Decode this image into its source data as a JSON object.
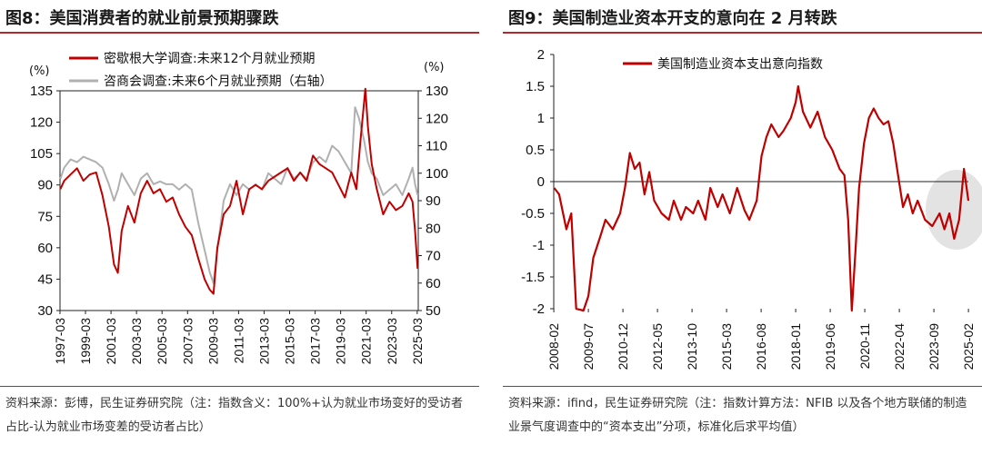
{
  "left_panel": {
    "title": "图8：美国消费者的就业前景预期骤跌",
    "source": "资料来源：彭博，民生证券研究院（注：指数含义：100%+认为就业市场变好的受访者占比-认为就业市场变差的受访者占比）"
  },
  "right_panel": {
    "title": "图9：美国制造业资本开支的意向在 2 月转跌",
    "source": "资料来源：ifind，民生证券研究院（注：指数计算方法：NFIB 以及各个地方联储的制造业景气度调查中的“资本支出”分项，标准化后求平均值）"
  },
  "colors": {
    "red": "#c00000",
    "gray": "#b0b0b0",
    "rule": "#b3282d",
    "ellipse": "#d9d9d9"
  },
  "chart_data": [
    {
      "type": "line",
      "title": "图8：美国消费者的就业前景预期骤跌",
      "y_left_unit": "(%)",
      "y_right_unit": "(%)",
      "y_left_range": [
        30,
        135
      ],
      "y_left_ticks": [
        "30",
        "45",
        "60",
        "75",
        "90",
        "105",
        "120",
        "135"
      ],
      "y_right_range": [
        50,
        130
      ],
      "y_right_ticks": [
        "50",
        "60",
        "70",
        "80",
        "90",
        "100",
        "110",
        "120",
        "130"
      ],
      "x_range": [
        1997.17,
        2025.25
      ],
      "x_ticks": [
        "1997-03",
        "1999-03",
        "2001-03",
        "2003-03",
        "2005-03",
        "2007-03",
        "2009-03",
        "2011-03",
        "2013-03",
        "2015-03",
        "2017-03",
        "2019-03",
        "2021-03",
        "2023-03",
        "2025-03"
      ],
      "series": [
        {
          "name": "密歇根大学调查:未来12个月就业预期",
          "axis": "left",
          "color": "#c00000",
          "points": [
            [
              1997.2,
              88
            ],
            [
              1997.5,
              92
            ],
            [
              1998.0,
              95
            ],
            [
              1998.5,
              98
            ],
            [
              1999.0,
              92
            ],
            [
              1999.5,
              95
            ],
            [
              2000.0,
              96
            ],
            [
              2000.5,
              85
            ],
            [
              2001.0,
              70
            ],
            [
              2001.4,
              52
            ],
            [
              2001.7,
              48
            ],
            [
              2002.0,
              68
            ],
            [
              2002.5,
              80
            ],
            [
              2003.0,
              72
            ],
            [
              2003.5,
              86
            ],
            [
              2004.0,
              92
            ],
            [
              2004.5,
              86
            ],
            [
              2005.0,
              88
            ],
            [
              2005.5,
              82
            ],
            [
              2006.0,
              84
            ],
            [
              2006.5,
              76
            ],
            [
              2007.0,
              70
            ],
            [
              2007.5,
              66
            ],
            [
              2008.0,
              55
            ],
            [
              2008.5,
              45
            ],
            [
              2008.9,
              40
            ],
            [
              2009.2,
              38
            ],
            [
              2009.5,
              60
            ],
            [
              2010.0,
              76
            ],
            [
              2010.5,
              80
            ],
            [
              2011.0,
              92
            ],
            [
              2011.5,
              76
            ],
            [
              2012.0,
              88
            ],
            [
              2012.5,
              90
            ],
            [
              2013.0,
              88
            ],
            [
              2013.5,
              92
            ],
            [
              2014.0,
              94
            ],
            [
              2014.5,
              96
            ],
            [
              2015.0,
              98
            ],
            [
              2015.5,
              92
            ],
            [
              2016.0,
              96
            ],
            [
              2016.5,
              92
            ],
            [
              2017.0,
              104
            ],
            [
              2017.5,
              100
            ],
            [
              2018.0,
              98
            ],
            [
              2018.5,
              96
            ],
            [
              2019.0,
              90
            ],
            [
              2019.5,
              84
            ],
            [
              2020.0,
              96
            ],
            [
              2020.4,
              88
            ],
            [
              2020.7,
              110
            ],
            [
              2021.1,
              136
            ],
            [
              2021.3,
              118
            ],
            [
              2021.6,
              100
            ],
            [
              2022.0,
              88
            ],
            [
              2022.5,
              76
            ],
            [
              2023.0,
              82
            ],
            [
              2023.5,
              78
            ],
            [
              2024.0,
              80
            ],
            [
              2024.5,
              86
            ],
            [
              2024.8,
              82
            ],
            [
              2025.0,
              68
            ],
            [
              2025.2,
              50
            ]
          ]
        },
        {
          "name": "咨商会调查:未来6个月就业预期（右轴）",
          "axis": "right",
          "color": "#b0b0b0",
          "points": [
            [
              1997.2,
              98
            ],
            [
              1997.5,
              102
            ],
            [
              1998.0,
              105
            ],
            [
              1998.5,
              104
            ],
            [
              1999.0,
              106
            ],
            [
              1999.5,
              105
            ],
            [
              2000.0,
              104
            ],
            [
              2000.5,
              102
            ],
            [
              2001.0,
              96
            ],
            [
              2001.4,
              90
            ],
            [
              2001.7,
              94
            ],
            [
              2002.0,
              100
            ],
            [
              2002.5,
              96
            ],
            [
              2003.0,
              92
            ],
            [
              2003.5,
              98
            ],
            [
              2004.0,
              100
            ],
            [
              2004.5,
              96
            ],
            [
              2005.0,
              97
            ],
            [
              2005.5,
              96
            ],
            [
              2006.0,
              96
            ],
            [
              2006.5,
              94
            ],
            [
              2007.0,
              96
            ],
            [
              2007.5,
              94
            ],
            [
              2008.0,
              82
            ],
            [
              2008.5,
              72
            ],
            [
              2008.9,
              64
            ],
            [
              2009.2,
              60
            ],
            [
              2009.5,
              72
            ],
            [
              2010.0,
              90
            ],
            [
              2010.5,
              96
            ],
            [
              2011.0,
              92
            ],
            [
              2011.5,
              96
            ],
            [
              2012.0,
              94
            ],
            [
              2012.5,
              96
            ],
            [
              2013.0,
              94
            ],
            [
              2013.5,
              100
            ],
            [
              2014.0,
              98
            ],
            [
              2014.5,
              96
            ],
            [
              2015.0,
              102
            ],
            [
              2015.5,
              98
            ],
            [
              2016.0,
              100
            ],
            [
              2016.5,
              98
            ],
            [
              2017.0,
              104
            ],
            [
              2017.5,
              106
            ],
            [
              2018.0,
              104
            ],
            [
              2018.5,
              110
            ],
            [
              2019.0,
              108
            ],
            [
              2019.5,
              104
            ],
            [
              2020.0,
              100
            ],
            [
              2020.3,
              124
            ],
            [
              2020.6,
              120
            ],
            [
              2021.0,
              112
            ],
            [
              2021.3,
              104
            ],
            [
              2021.6,
              100
            ],
            [
              2022.0,
              98
            ],
            [
              2022.5,
              92
            ],
            [
              2023.0,
              94
            ],
            [
              2023.5,
              96
            ],
            [
              2024.0,
              92
            ],
            [
              2024.5,
              98
            ],
            [
              2024.8,
              102
            ],
            [
              2025.0,
              96
            ],
            [
              2025.2,
              92
            ]
          ]
        }
      ]
    },
    {
      "type": "line",
      "title": "图9：美国制造业资本开支的意向在 2 月转跌",
      "y_range": [
        -2,
        2
      ],
      "y_ticks": [
        "-2",
        "-1.5",
        "-1",
        "-0.5",
        "0",
        "0.5",
        "1",
        "1.5",
        "2"
      ],
      "x_range": [
        2008.08,
        2025.08
      ],
      "x_ticks": [
        "2008-02",
        "2009-07",
        "2010-12",
        "2012-05",
        "2013-10",
        "2015-03",
        "2016-08",
        "2018-01",
        "2019-06",
        "2020-11",
        "2022-04",
        "2023-09",
        "2025-02"
      ],
      "series": [
        {
          "name": "美国制造业资本支出意向指数",
          "color": "#c00000",
          "points": [
            [
              2008.1,
              -0.1
            ],
            [
              2008.3,
              -0.2
            ],
            [
              2008.6,
              -0.75
            ],
            [
              2008.8,
              -0.5
            ],
            [
              2009.0,
              -2.0
            ],
            [
              2009.3,
              -2.1
            ],
            [
              2009.5,
              -1.8
            ],
            [
              2009.7,
              -1.2
            ],
            [
              2010.0,
              -0.85
            ],
            [
              2010.2,
              -0.6
            ],
            [
              2010.5,
              -0.75
            ],
            [
              2010.8,
              -0.5
            ],
            [
              2011.0,
              -0.1
            ],
            [
              2011.2,
              0.45
            ],
            [
              2011.4,
              0.2
            ],
            [
              2011.6,
              0.3
            ],
            [
              2011.8,
              -0.2
            ],
            [
              2012.0,
              0.15
            ],
            [
              2012.2,
              -0.3
            ],
            [
              2012.5,
              -0.5
            ],
            [
              2012.8,
              -0.6
            ],
            [
              2013.0,
              -0.3
            ],
            [
              2013.3,
              -0.6
            ],
            [
              2013.5,
              -0.4
            ],
            [
              2013.8,
              -0.5
            ],
            [
              2014.0,
              -0.3
            ],
            [
              2014.3,
              -0.6
            ],
            [
              2014.5,
              -0.1
            ],
            [
              2014.8,
              -0.4
            ],
            [
              2015.0,
              -0.2
            ],
            [
              2015.3,
              -0.5
            ],
            [
              2015.6,
              -0.1
            ],
            [
              2015.9,
              -0.45
            ],
            [
              2016.1,
              -0.6
            ],
            [
              2016.4,
              -0.3
            ],
            [
              2016.6,
              0.4
            ],
            [
              2016.8,
              0.7
            ],
            [
              2017.0,
              0.9
            ],
            [
              2017.3,
              0.7
            ],
            [
              2017.5,
              0.8
            ],
            [
              2017.8,
              1.0
            ],
            [
              2018.0,
              1.25
            ],
            [
              2018.1,
              1.5
            ],
            [
              2018.3,
              1.1
            ],
            [
              2018.6,
              0.85
            ],
            [
              2018.9,
              1.1
            ],
            [
              2019.2,
              0.7
            ],
            [
              2019.5,
              0.5
            ],
            [
              2019.8,
              0.2
            ],
            [
              2020.0,
              0.1
            ],
            [
              2020.15,
              -0.6
            ],
            [
              2020.3,
              -2.05
            ],
            [
              2020.45,
              -1.1
            ],
            [
              2020.6,
              -0.1
            ],
            [
              2020.8,
              0.6
            ],
            [
              2021.0,
              1.0
            ],
            [
              2021.2,
              1.15
            ],
            [
              2021.4,
              1.0
            ],
            [
              2021.6,
              0.9
            ],
            [
              2021.8,
              0.95
            ],
            [
              2022.0,
              0.6
            ],
            [
              2022.2,
              0.1
            ],
            [
              2022.4,
              -0.4
            ],
            [
              2022.6,
              -0.2
            ],
            [
              2022.8,
              -0.5
            ],
            [
              2023.0,
              -0.3
            ],
            [
              2023.3,
              -0.6
            ],
            [
              2023.6,
              -0.7
            ],
            [
              2023.9,
              -0.5
            ],
            [
              2024.1,
              -0.75
            ],
            [
              2024.3,
              -0.5
            ],
            [
              2024.5,
              -0.9
            ],
            [
              2024.7,
              -0.6
            ],
            [
              2024.9,
              0.2
            ],
            [
              2025.08,
              -0.3
            ]
          ]
        }
      ]
    }
  ]
}
